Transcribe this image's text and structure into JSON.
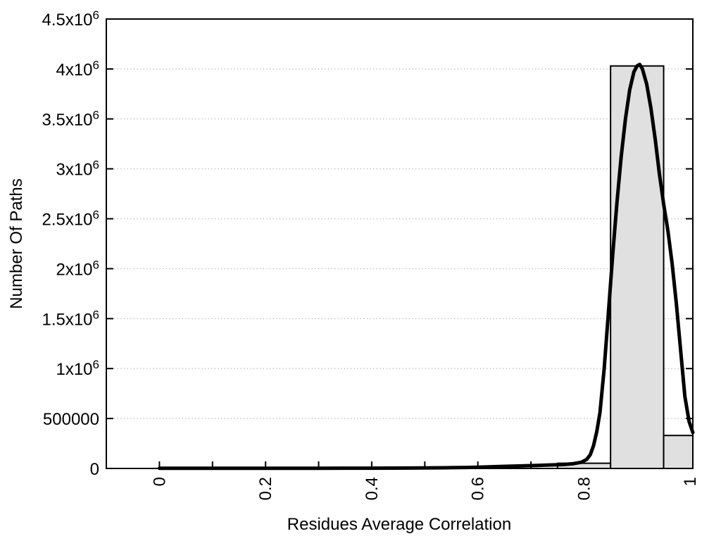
{
  "page": {
    "background_color": "#ffffff"
  },
  "chart_data": {
    "type": "bar",
    "subtype": "histogram-with-fitted-curve",
    "title": "",
    "xlabel": "Residues Average Correlation",
    "ylabel": "Number Of Paths",
    "xlim": [
      -0.1,
      1.005
    ],
    "ylim": [
      0,
      4500000
    ],
    "legend": null,
    "axis_color": "#000000",
    "text_color": "#000000",
    "grid": {
      "horizontal": true,
      "vertical": false,
      "style": "dotted",
      "color": "#b4b4b4"
    },
    "x_ticks_major": [
      {
        "v": 0,
        "label": "0"
      },
      {
        "v": 0.2,
        "label": "0.2"
      },
      {
        "v": 0.4,
        "label": "0.4"
      },
      {
        "v": 0.6,
        "label": "0.6"
      },
      {
        "v": 0.8,
        "label": "0.8"
      },
      {
        "v": 1,
        "label": "1"
      }
    ],
    "x_ticks_minor": [
      0.1,
      0.3,
      0.5,
      0.7,
      0.9
    ],
    "y_ticks": [
      {
        "v": 0,
        "label": "0"
      },
      {
        "v": 500000,
        "label": "500000"
      },
      {
        "v": 1000000,
        "label": "1x10^6"
      },
      {
        "v": 1500000,
        "label": "1.5x10^6"
      },
      {
        "v": 2000000,
        "label": "2x10^6"
      },
      {
        "v": 2500000,
        "label": "2.5x10^6"
      },
      {
        "v": 3000000,
        "label": "3x10^6"
      },
      {
        "v": 3500000,
        "label": "3.5x10^6"
      },
      {
        "v": 4000000,
        "label": "4x10^6"
      },
      {
        "v": 4500000,
        "label": "4.5x10^6"
      }
    ],
    "bars": {
      "fill": "#e0e0e0",
      "stroke": "#000000",
      "bin_width": 0.1,
      "data": [
        {
          "x0": 0.75,
          "x1": 0.85,
          "center": 0.8,
          "value": 52000
        },
        {
          "x0": 0.85,
          "x1": 0.95,
          "center": 0.9,
          "value": 4030000
        },
        {
          "x0": 0.95,
          "x1": 1.05,
          "center": 1.0,
          "value": 330000
        }
      ]
    },
    "curve": {
      "name": "fitted-distribution-curve",
      "color": "#000000",
      "width": 5,
      "points": [
        [
          0.0,
          2000
        ],
        [
          0.05,
          2000
        ],
        [
          0.1,
          2000
        ],
        [
          0.15,
          2000
        ],
        [
          0.2,
          2000
        ],
        [
          0.25,
          2000
        ],
        [
          0.3,
          2200
        ],
        [
          0.35,
          2500
        ],
        [
          0.4,
          3000
        ],
        [
          0.45,
          3800
        ],
        [
          0.5,
          5000
        ],
        [
          0.55,
          7500
        ],
        [
          0.58,
          10000
        ],
        [
          0.61,
          14000
        ],
        [
          0.64,
          19000
        ],
        [
          0.67,
          24000
        ],
        [
          0.7,
          28000
        ],
        [
          0.73,
          33000
        ],
        [
          0.76,
          39000
        ],
        [
          0.78,
          48000
        ],
        [
          0.795,
          62000
        ],
        [
          0.805,
          90000
        ],
        [
          0.812,
          140000
        ],
        [
          0.818,
          230000
        ],
        [
          0.824,
          370000
        ],
        [
          0.83,
          560000
        ],
        [
          0.838,
          1000000
        ],
        [
          0.846,
          1560000
        ],
        [
          0.854,
          2140000
        ],
        [
          0.862,
          2660000
        ],
        [
          0.87,
          3120000
        ],
        [
          0.878,
          3500000
        ],
        [
          0.886,
          3790000
        ],
        [
          0.894,
          3970000
        ],
        [
          0.9,
          4030000
        ],
        [
          0.905,
          4045000
        ],
        [
          0.91,
          4000000
        ],
        [
          0.918,
          3850000
        ],
        [
          0.926,
          3610000
        ],
        [
          0.934,
          3300000
        ],
        [
          0.942,
          2950000
        ],
        [
          0.95,
          2650000
        ],
        [
          0.958,
          2380000
        ],
        [
          0.966,
          2050000
        ],
        [
          0.974,
          1650000
        ],
        [
          0.982,
          1180000
        ],
        [
          0.99,
          720000
        ],
        [
          0.998,
          470000
        ],
        [
          1.005,
          360000
        ]
      ]
    }
  }
}
